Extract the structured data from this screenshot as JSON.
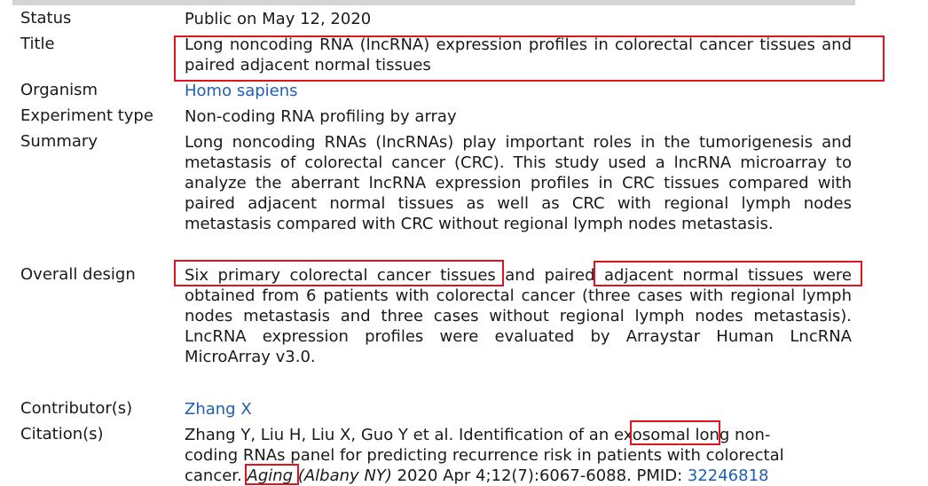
{
  "fields": {
    "status": {
      "label": "Status",
      "value": "Public on May 12, 2020"
    },
    "title": {
      "label": "Title",
      "value": "Long noncoding RNA (lncRNA) expression profiles in colorectal cancer tissues and paired adjacent normal tissues"
    },
    "organism": {
      "label": "Organism",
      "value": "Homo sapiens"
    },
    "experiment_type": {
      "label": "Experiment type",
      "value": "Non-coding RNA profiling by array"
    },
    "summary": {
      "label": "Summary",
      "value": "Long noncoding RNAs (lncRNAs) play important roles in the tumorigenesis and metastasis of colorectal cancer (CRC). This study used a lncRNA microarray to analyze the aberrant lncRNA expression profiles in CRC tissues compared with paired adjacent normal tissues as well as CRC with regional lymph nodes metastasis compared with CRC without regional lymph nodes metastasis."
    },
    "overall_design": {
      "label": "Overall design",
      "value": "Six primary colorectal cancer tissues and paired adjacent normal tissues were obtained from 6 patients with colorectal cancer (three cases with regional lymph nodes metastasis and three cases without regional lymph nodes metastasis). LncRNA expression profiles were evaluated by Arraystar Human LncRNA MicroArray v3.0."
    },
    "contributor": {
      "label": "Contributor(s)",
      "value": "Zhang X"
    },
    "citation": {
      "label": "Citation(s)",
      "text_before": "Zhang Y, Liu H, Liu X, Guo Y et al. Identification of an exosomal long non-coding RNAs panel for predicting recurrence risk in patients with colorectal cancer. ",
      "journal": "Aging",
      "journal_suffix": "(Albany NY)",
      "text_after": " 2020 Apr 4;12(7):6067-6088. PMID: ",
      "pmid": "32246818"
    }
  },
  "colors": {
    "link": "#1f5fb0",
    "highlight_box": "#e0141e"
  }
}
